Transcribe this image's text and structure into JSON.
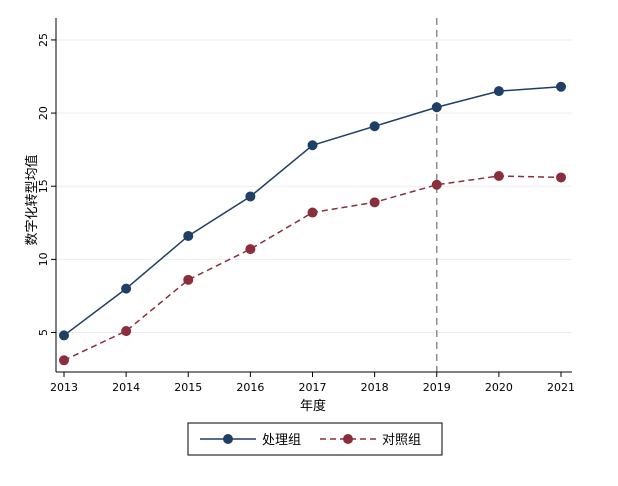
{
  "chart_data": {
    "type": "line",
    "x": [
      "2013",
      "2014",
      "2015",
      "2016",
      "2017",
      "2018",
      "2019",
      "2020",
      "2021"
    ],
    "series": [
      {
        "name": "处理组",
        "values": [
          4.8,
          8.0,
          11.6,
          14.3,
          17.8,
          19.1,
          20.4,
          21.5,
          21.8
        ],
        "color": "#1f3f66",
        "dash": "solid"
      },
      {
        "name": "对照组",
        "values": [
          3.1,
          5.1,
          8.6,
          10.7,
          13.2,
          13.9,
          15.1,
          15.7,
          15.6
        ],
        "color": "#8b2e3c",
        "dash": "dashed"
      }
    ],
    "xlabel": "年度",
    "ylabel": "数字化转型均值",
    "ylim": [
      2.3,
      26.5
    ],
    "yticks": [
      "5",
      "10",
      "15",
      "20",
      "25"
    ],
    "reference_line": {
      "x": "2019",
      "color": "#8a8f96",
      "style": "dashed"
    },
    "grid": "horizontal",
    "legend_position": "bottom"
  }
}
